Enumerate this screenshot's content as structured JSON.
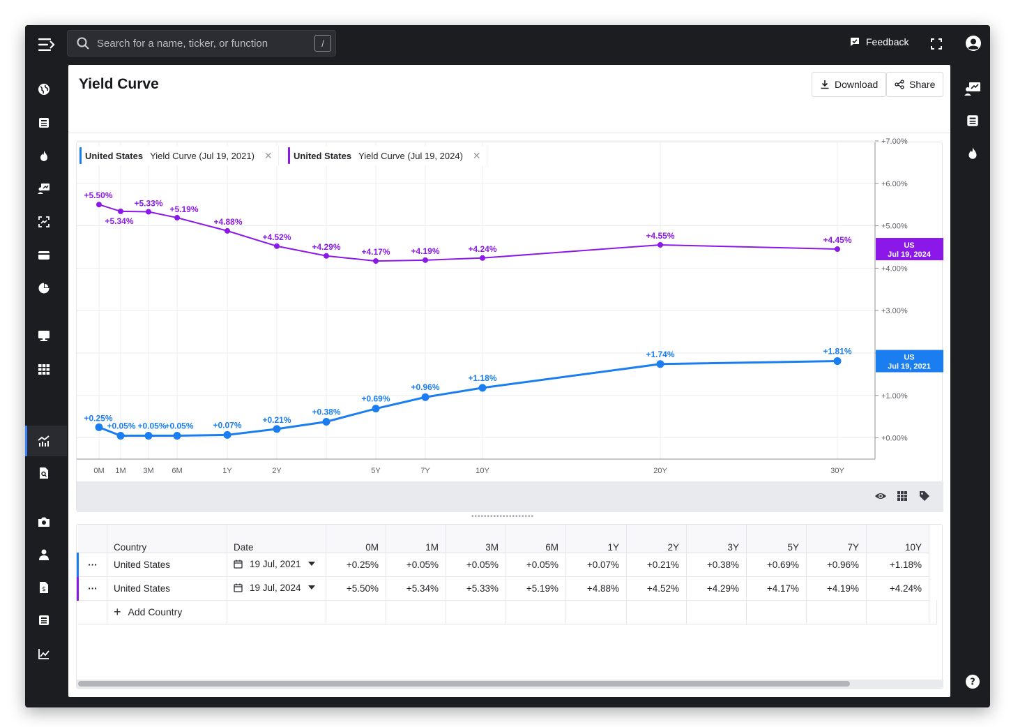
{
  "app": {
    "search_placeholder": "Search for a name, ticker, or function",
    "search_shortcut": "/",
    "feedback_label": "Feedback"
  },
  "page": {
    "title": "Yield Curve",
    "download_label": "Download",
    "share_label": "Share"
  },
  "legend": [
    {
      "country": "United States",
      "label": "Yield Curve (Jul 19, 2021)",
      "color": "#1a7df0"
    },
    {
      "country": "United States",
      "label": "Yield Curve (Jul 19, 2024)",
      "color": "#8b18e8"
    }
  ],
  "chart_data": {
    "type": "line",
    "categories": [
      "0M",
      "1M",
      "3M",
      "6M",
      "1Y",
      "2Y",
      "3Y",
      "5Y",
      "7Y",
      "10Y",
      "20Y",
      "30Y"
    ],
    "x_tick_labels": [
      "0M",
      "1M",
      "3M",
      "6M",
      "1Y",
      "2Y",
      "",
      "5Y",
      "7Y",
      "10Y",
      "20Y",
      "30Y"
    ],
    "ylim": [
      -0.5,
      7.0
    ],
    "y_ticks": [
      "+0.00%",
      "+1.00%",
      "+2.00%",
      "+3.00%",
      "+4.00%",
      "+5.00%",
      "+6.00%",
      "+7.00%"
    ],
    "y_tick_values": [
      0,
      1,
      2,
      3,
      4,
      5,
      6,
      7
    ],
    "series": [
      {
        "name": "US Jul 19, 2024",
        "tag_line1": "US",
        "tag_line2": "Jul 19, 2024",
        "color": "#8b18e8",
        "values": [
          5.5,
          5.34,
          5.33,
          5.19,
          4.88,
          4.52,
          4.29,
          4.17,
          4.19,
          4.24,
          4.55,
          4.45
        ],
        "labels": [
          "+5.50%",
          "+5.34%",
          "+5.33%",
          "+5.19%",
          "+4.88%",
          "+4.52%",
          "+4.29%",
          "+4.17%",
          "+4.19%",
          "+4.24%",
          "+4.55%",
          "+4.45%"
        ]
      },
      {
        "name": "US Jul 19, 2021",
        "tag_line1": "US",
        "tag_line2": "Jul 19, 2021",
        "color": "#1a7df0",
        "values": [
          0.25,
          0.05,
          0.05,
          0.05,
          0.07,
          0.21,
          0.38,
          0.69,
          0.96,
          1.18,
          1.74,
          1.81
        ],
        "labels": [
          "+0.25%",
          "+0.05%",
          "+0.05%",
          "+0.05%",
          "+0.07%",
          "+0.21%",
          "+0.38%",
          "+0.69%",
          "+0.96%",
          "+1.18%",
          "+1.74%",
          "+1.81%"
        ]
      }
    ]
  },
  "table": {
    "headers": [
      "Country",
      "Date",
      "0M",
      "1M",
      "3M",
      "6M",
      "1Y",
      "2Y",
      "3Y",
      "5Y",
      "7Y",
      "10Y"
    ],
    "rows": [
      {
        "menu": "···",
        "country": "United States",
        "date": "19 Jul, 2021",
        "color": "#1a7df0",
        "values": [
          "+0.25%",
          "+0.05%",
          "+0.05%",
          "+0.05%",
          "+0.07%",
          "+0.21%",
          "+0.38%",
          "+0.69%",
          "+0.96%",
          "+1.18%"
        ]
      },
      {
        "menu": "···",
        "country": "United States",
        "date": "19 Jul, 2024",
        "color": "#8b18e8",
        "values": [
          "+5.50%",
          "+5.34%",
          "+5.33%",
          "+5.19%",
          "+4.88%",
          "+4.52%",
          "+4.29%",
          "+4.17%",
          "+4.19%",
          "+4.24%"
        ]
      }
    ],
    "add_country_label": "Add Country"
  }
}
